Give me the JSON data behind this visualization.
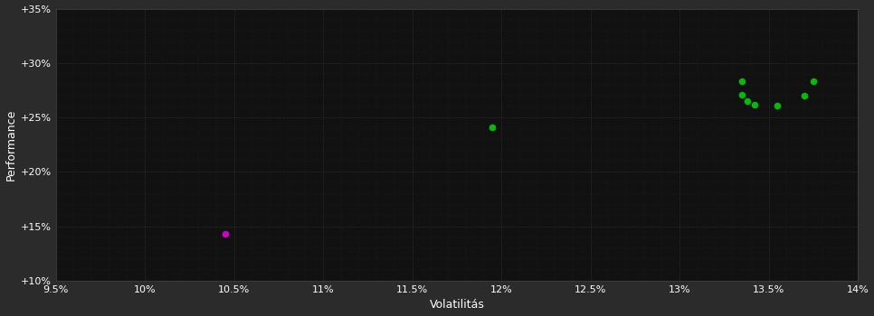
{
  "background_color": "#2b2b2b",
  "plot_bg_color": "#111111",
  "grid_color": "#444444",
  "text_color": "#ffffff",
  "xlabel": "Volatilitás",
  "ylabel": "Performance",
  "xlim": [
    0.095,
    0.14
  ],
  "ylim": [
    0.1,
    0.35
  ],
  "xticks": [
    0.095,
    0.1,
    0.105,
    0.11,
    0.115,
    0.12,
    0.125,
    0.13,
    0.135,
    0.14
  ],
  "xtick_labels": [
    "9.5%",
    "10%",
    "10.5%",
    "11%",
    "11.5%",
    "12%",
    "12.5%",
    "13%",
    "13.5%",
    "14%"
  ],
  "yticks": [
    0.1,
    0.15,
    0.2,
    0.25,
    0.3,
    0.35
  ],
  "ytick_labels": [
    "+10%",
    "+15%",
    "+20%",
    "+25%",
    "+30%",
    "+35%"
  ],
  "green_points": [
    [
      0.1195,
      0.241
    ],
    [
      0.1335,
      0.283
    ],
    [
      0.1335,
      0.271
    ],
    [
      0.1338,
      0.265
    ],
    [
      0.1342,
      0.262
    ],
    [
      0.1355,
      0.261
    ],
    [
      0.137,
      0.27
    ],
    [
      0.1375,
      0.283
    ]
  ],
  "magenta_points": [
    [
      0.1045,
      0.143
    ]
  ],
  "green_color": "#00bb00",
  "magenta_color": "#cc00cc",
  "marker_size": 30
}
